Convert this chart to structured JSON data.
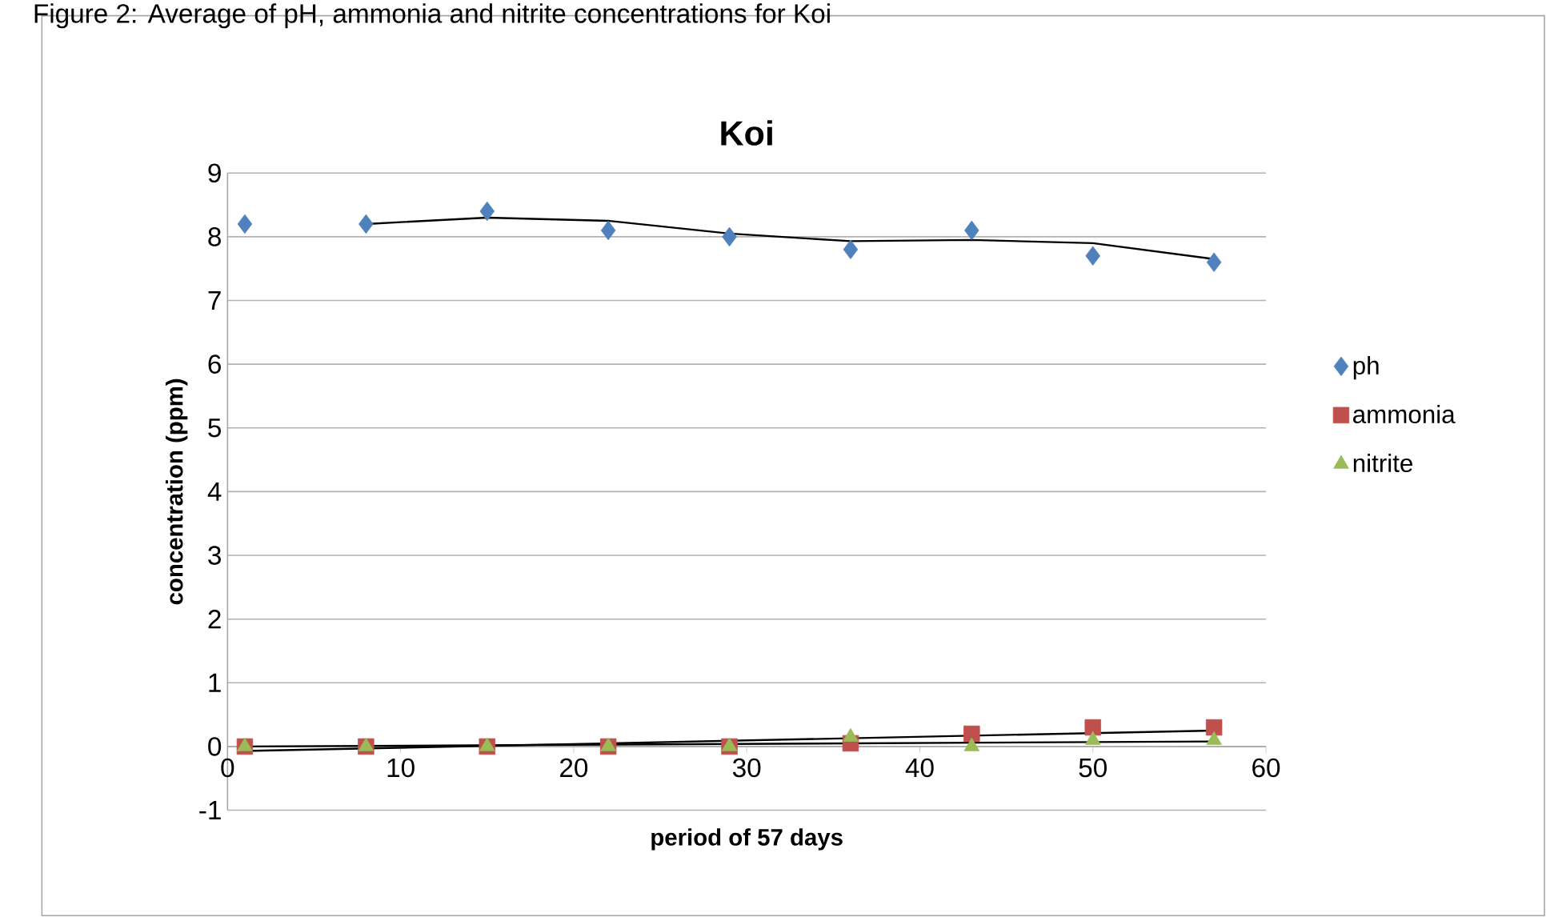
{
  "chart_data": {
    "type": "scatter",
    "title": "Koi",
    "xlabel": "period of 57 days",
    "ylabel": "concentration (ppm)",
    "annotations": [
      "Figure 2: Average of pH, ammonia and nitrite concentrations for Koi"
    ],
    "xlim": [
      0,
      60
    ],
    "xticks": [
      0,
      10,
      20,
      30,
      40,
      50,
      60
    ],
    "ylim": [
      -1,
      9
    ],
    "yticks": [
      -1,
      0,
      1,
      2,
      3,
      4,
      5,
      6,
      7,
      8,
      9
    ],
    "grid": "y",
    "legend": "right",
    "series": [
      {
        "name": "ph",
        "color": "#4f81bd",
        "marker": "diamond",
        "x": [
          1,
          8,
          15,
          22,
          29,
          36,
          43,
          50,
          57
        ],
        "values": [
          8.2,
          8.2,
          8.4,
          8.1,
          8.0,
          7.8,
          8.1,
          7.7,
          7.6
        ]
      },
      {
        "name": "ammonia",
        "color": "#c0504d",
        "marker": "square",
        "x": [
          1,
          8,
          15,
          22,
          29,
          36,
          43,
          50,
          57
        ],
        "values": [
          0,
          0,
          0,
          0,
          0,
          0.05,
          0.2,
          0.3,
          0.3
        ]
      },
      {
        "name": "nitrite",
        "color": "#9bbb59",
        "marker": "triangle",
        "x": [
          1,
          8,
          15,
          22,
          29,
          36,
          43,
          50,
          57
        ],
        "values": [
          0,
          0,
          0,
          0,
          0,
          0.15,
          0,
          0.1,
          0.1
        ]
      },
      {
        "type": "line",
        "color": "#000000",
        "marker": "none",
        "x": [
          8,
          15,
          22,
          29,
          36,
          43,
          50,
          57
        ],
        "values": [
          8.2,
          8.3,
          8.25,
          8.05,
          7.93,
          7.95,
          7.9,
          7.65
        ]
      },
      {
        "type": "line",
        "color": "#000000",
        "marker": "none",
        "x": [
          1,
          57
        ],
        "values": [
          -0.07,
          0.25
        ]
      },
      {
        "type": "line",
        "color": "#000000",
        "marker": "none",
        "x": [
          1,
          57
        ],
        "values": [
          0,
          0.08
        ]
      }
    ]
  }
}
